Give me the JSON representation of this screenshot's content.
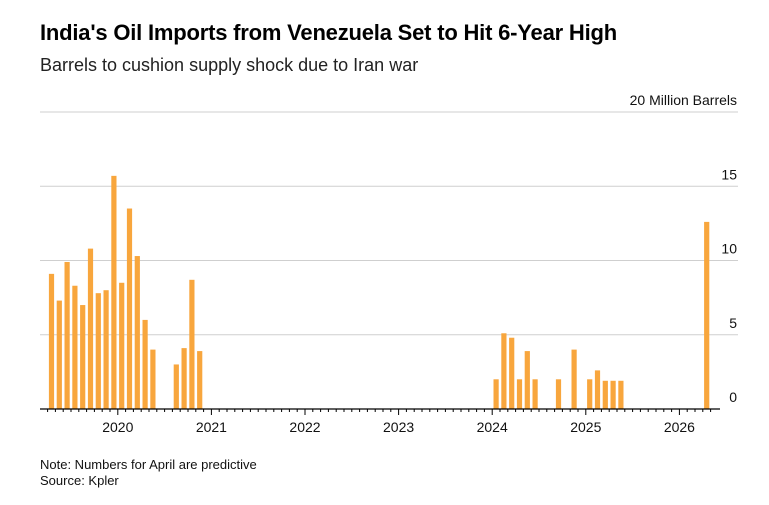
{
  "header": {
    "title": "India's Oil Imports from Venezuela Set to Hit 6-Year High",
    "subtitle": "Barrels to cushion supply shock due to Iran war"
  },
  "footer": {
    "note": "Note: Numbers for April are predictive",
    "source": "Source: Kpler"
  },
  "colors": {
    "bar": "#f8a63d",
    "grid": "#cfcfcf",
    "axis": "#000000"
  },
  "chart_data": {
    "type": "bar",
    "ylabel": "20 Million Barrels",
    "y_unit_label": "Million Barrels",
    "ylim": [
      0,
      20
    ],
    "y_ticks": [
      0,
      5,
      10,
      15,
      20
    ],
    "x_tick_labels": [
      "2020",
      "2021",
      "2022",
      "2023",
      "2024",
      "2025",
      "2026"
    ],
    "grid": true,
    "legend": "none",
    "categories": [
      "2019-04",
      "2019-05",
      "2019-06",
      "2019-07",
      "2019-08",
      "2019-09",
      "2019-10",
      "2019-11",
      "2019-12",
      "2020-01",
      "2020-02",
      "2020-03",
      "2020-04",
      "2020-05",
      "2020-06",
      "2020-07",
      "2020-08",
      "2020-09",
      "2020-10",
      "2020-11",
      "2020-12",
      "2021-01",
      "2021-02",
      "2021-03",
      "2021-04",
      "2021-05",
      "2021-06",
      "2021-07",
      "2021-08",
      "2021-09",
      "2021-10",
      "2021-11",
      "2021-12",
      "2022-01",
      "2022-02",
      "2022-03",
      "2022-04",
      "2022-05",
      "2022-06",
      "2022-07",
      "2022-08",
      "2022-09",
      "2022-10",
      "2022-11",
      "2022-12",
      "2023-01",
      "2023-02",
      "2023-03",
      "2023-04",
      "2023-05",
      "2023-06",
      "2023-07",
      "2023-08",
      "2023-09",
      "2023-10",
      "2023-11",
      "2023-12",
      "2024-01",
      "2024-02",
      "2024-03",
      "2024-04",
      "2024-05",
      "2024-06",
      "2024-07",
      "2024-08",
      "2024-09",
      "2024-10",
      "2024-11",
      "2024-12",
      "2025-01",
      "2025-02",
      "2025-03",
      "2025-04",
      "2025-05",
      "2025-06",
      "2025-07",
      "2025-08",
      "2025-09",
      "2025-10",
      "2025-11",
      "2025-12",
      "2026-01",
      "2026-02",
      "2026-03",
      "2026-04"
    ],
    "values": [
      9.1,
      7.3,
      9.9,
      8.3,
      7.0,
      10.8,
      7.8,
      8.0,
      15.7,
      8.5,
      13.5,
      10.3,
      6.0,
      4.0,
      0,
      0,
      3.0,
      4.1,
      8.7,
      3.9,
      0,
      0,
      0,
      0,
      0,
      0,
      0,
      0,
      0,
      0,
      0,
      0,
      0,
      0,
      0,
      0,
      0,
      0,
      0,
      0,
      0,
      0,
      0,
      0,
      0,
      0,
      0,
      0,
      0,
      0,
      0,
      0,
      0,
      0,
      0,
      0,
      0,
      2.0,
      5.1,
      4.8,
      2.0,
      3.9,
      2.0,
      0,
      0,
      2.0,
      0,
      4.0,
      0,
      2.0,
      2.6,
      1.9,
      1.9,
      1.9,
      0,
      0,
      0,
      0,
      0,
      0,
      0,
      0,
      0,
      0,
      12.6
    ]
  }
}
